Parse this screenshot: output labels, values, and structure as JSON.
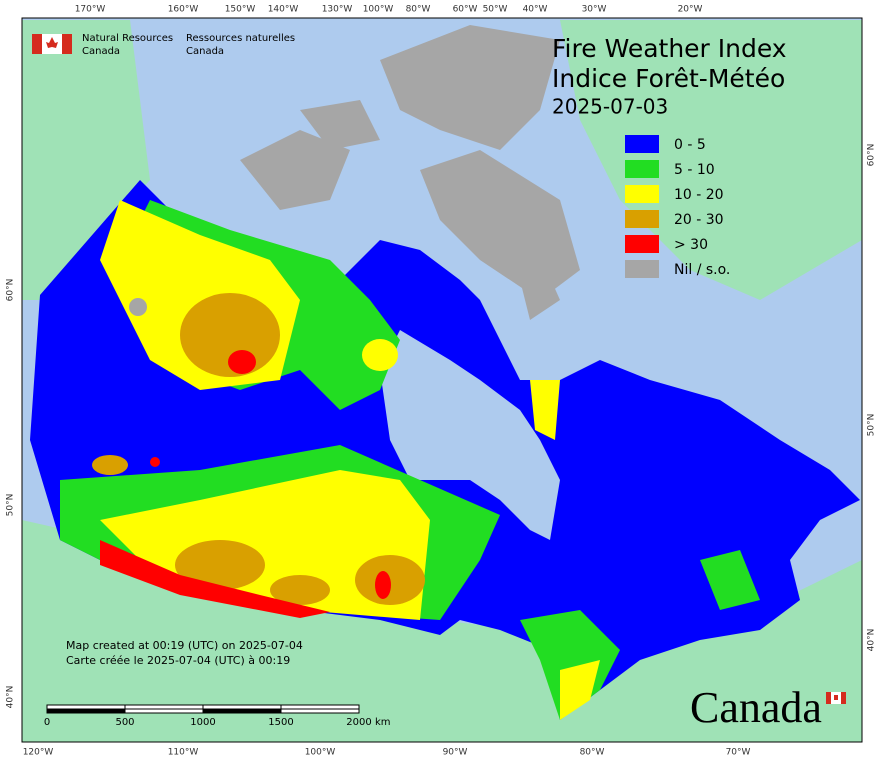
{
  "header": {
    "org_en": [
      "Natural Resources",
      "Canada"
    ],
    "org_fr": [
      "Ressources naturelles",
      "Canada"
    ]
  },
  "title": {
    "line1": "Fire Weather Index",
    "line2": "Indice Forêt-Météo",
    "date": "2025-07-03"
  },
  "legend": [
    {
      "label": "0 - 5",
      "color": "#0000ff"
    },
    {
      "label": "5 - 10",
      "color": "#22dd22"
    },
    {
      "label": "10 - 20",
      "color": "#ffff00"
    },
    {
      "label": "20 - 30",
      "color": "#d9a000"
    },
    {
      "label": "> 30",
      "color": "#ff0000"
    },
    {
      "label": "Nil / s.o.",
      "color": "#a6a6a6"
    }
  ],
  "graticule": {
    "top": [
      "170°W",
      "160°W",
      "150°W",
      "140°W",
      "130°W",
      "100°W",
      "80°W",
      "60°W",
      "50°W",
      "40°W",
      "30°W",
      "20°W"
    ],
    "bottom": [
      "120°W",
      "110°W",
      "100°W",
      "90°W",
      "80°W",
      "70°W"
    ],
    "left": [
      "60°N",
      "50°N",
      "40°N"
    ],
    "right": [
      "60°N",
      "50°N",
      "40°N"
    ]
  },
  "footnote": [
    "Map created at 00:19 (UTC) on 2025-07-04",
    "Carte créée le 2025-07-04 (UTC) à 00:19"
  ],
  "scale_bar": {
    "ticks": [
      0,
      500,
      1000,
      1500,
      2000
    ],
    "unit": "km"
  },
  "wordmark": "Canada"
}
